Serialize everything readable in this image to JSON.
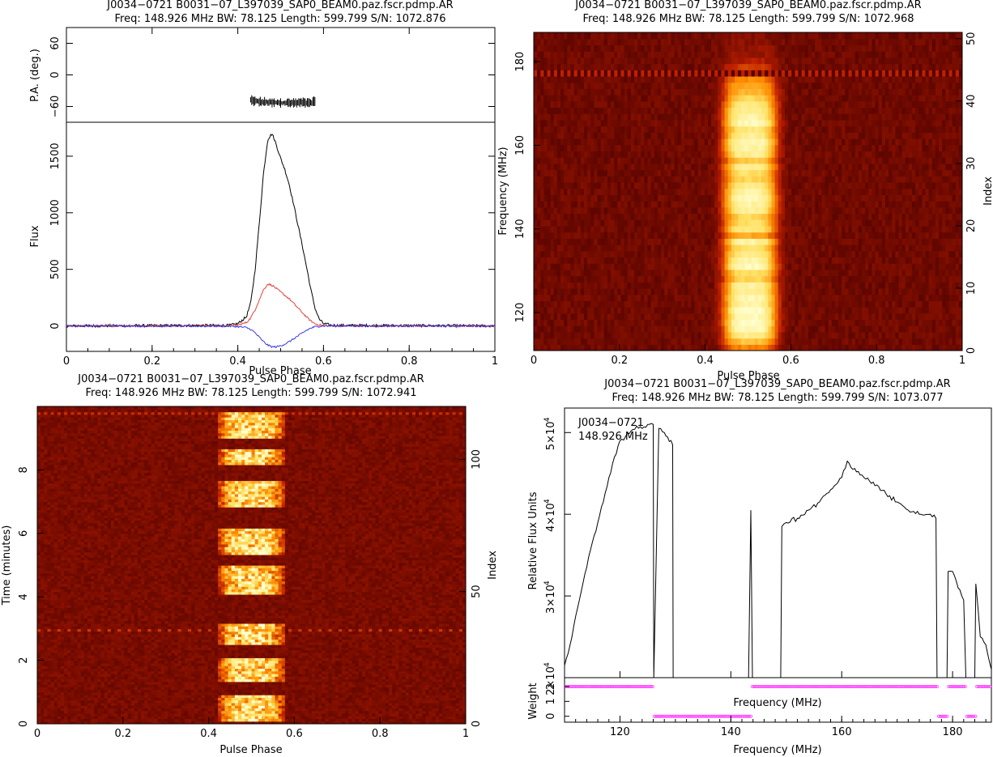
{
  "chart_data": [
    {
      "id": "profile",
      "type": "line",
      "title": "J0034−0721 B0031−07_L397039_SAP0_BEAM0.paz.fscr.pdmp.AR",
      "subtitle": "Freq: 148.926 MHz BW: 78.125 Length: 599.799 S/N: 1072.876",
      "xlabel": "Pulse Phase",
      "x_ticks": [
        "0",
        "0.2",
        "0.4",
        "0.6",
        "0.8",
        "1"
      ],
      "xlim": [
        0,
        1
      ],
      "pa_panel": {
        "ylabel": "P.A. (deg.)",
        "y_ticks": [
          "60",
          "0",
          "−60"
        ],
        "ylim": [
          -90,
          90
        ],
        "x": [
          0.43,
          0.44,
          0.45,
          0.46,
          0.47,
          0.48,
          0.49,
          0.5,
          0.51,
          0.52,
          0.53,
          0.54,
          0.55,
          0.56,
          0.57,
          0.58
        ],
        "values": [
          -48,
          -50,
          -51,
          -52,
          -52,
          -53,
          -53,
          -53,
          -53,
          -53,
          -53,
          -53,
          -52,
          -52,
          -52,
          -51
        ]
      },
      "flux_panel": {
        "ylabel": "Flux",
        "y_ticks": [
          "1500",
          "1000",
          "500",
          "0"
        ],
        "ylim": [
          -225,
          1800
        ],
        "x": [
          0,
          0.38,
          0.4,
          0.42,
          0.43,
          0.44,
          0.45,
          0.46,
          0.47,
          0.48,
          0.49,
          0.5,
          0.51,
          0.52,
          0.53,
          0.54,
          0.55,
          0.56,
          0.57,
          0.58,
          0.59,
          0.6,
          0.62,
          1.0
        ],
        "series": [
          {
            "color": "#000000",
            "values": [
              0,
              5,
              20,
              80,
              200,
              480,
              900,
              1350,
              1650,
              1700,
              1600,
              1480,
              1380,
              1250,
              1080,
              900,
              720,
              530,
              330,
              160,
              60,
              20,
              5,
              0
            ]
          },
          {
            "color": "#e8403a",
            "values": [
              0,
              2,
              8,
              30,
              70,
              140,
              230,
              320,
              370,
              360,
              330,
              300,
              270,
              240,
              200,
              160,
              120,
              80,
              45,
              20,
              8,
              3,
              0,
              0
            ]
          },
          {
            "color": "#3a3ae8",
            "values": [
              0,
              -2,
              -6,
              -15,
              -30,
              -60,
              -100,
              -140,
              -170,
              -185,
              -185,
              -175,
              -160,
              -140,
              -115,
              -90,
              -65,
              -40,
              -20,
              -8,
              -3,
              0,
              0,
              0
            ]
          }
        ]
      }
    },
    {
      "id": "freq-phase",
      "type": "heatmap",
      "title": "J0034−0721 B0031−07_L397039_SAP0_BEAM0.paz.fscr.pdmp.AR",
      "subtitle": "Freq: 148.926 MHz BW: 78.125 Length: 599.799 S/N: 1072.968",
      "xlabel": "Pulse Phase",
      "ylabel": "Frequency (MHz)",
      "right_label": "Index",
      "x_ticks": [
        "0",
        "0.2",
        "0.4",
        "0.6",
        "0.8",
        "1"
      ],
      "y_ticks": [
        "180",
        "160",
        "140",
        "120"
      ],
      "right_ticks": [
        "50",
        "40",
        "30",
        "20",
        "10",
        "0"
      ],
      "xlim": [
        0,
        1
      ],
      "ylim": [
        110.9,
        187.0
      ],
      "right_lim": [
        0,
        51
      ],
      "pulse_center": 0.505,
      "pulse_width": 0.13,
      "channel_weights": [
        0.45,
        0.65,
        0.85,
        0.95,
        1.0,
        0.95,
        0.98,
        0.9,
        0.92,
        0.85,
        0.88,
        0.7,
        0.75,
        0.95,
        0.9,
        0.82,
        0.75,
        0.9,
        0.55,
        0.8,
        0.75,
        0.7,
        0.85,
        0.9,
        0.95,
        0.9,
        0.82,
        0.7,
        0.75,
        0.85,
        0.65,
        0.85,
        0.9,
        0.95,
        0.85,
        0.8,
        0.95,
        0.9,
        0.85,
        0.8,
        0.7,
        0.6,
        0.55,
        0.45,
        0.35,
        0.25,
        0.15,
        0.1,
        0.08,
        0.06,
        0.05
      ],
      "colormap": [
        "#4a0000",
        "#c02000",
        "#ff8c00",
        "#ffe060",
        "#ffffd0"
      ]
    },
    {
      "id": "time-phase",
      "type": "heatmap",
      "title": "J0034−0721 B0031−07_L397039_SAP0_BEAM0.paz.fscr.pdmp.AR",
      "subtitle": "Freq: 148.926 MHz BW: 78.125 Length: 599.799 S/N: 1072.941",
      "xlabel": "Pulse Phase",
      "ylabel": "Time (minutes)",
      "right_label": "Index",
      "x_ticks": [
        "0",
        "0.2",
        "0.4",
        "0.6",
        "0.8",
        "1"
      ],
      "y_ticks": [
        "8",
        "6",
        "4",
        "2",
        "0"
      ],
      "right_ticks": [
        "100",
        "50",
        "0"
      ],
      "xlim": [
        0,
        1
      ],
      "ylim": [
        0,
        10
      ],
      "right_lim": [
        0,
        120
      ],
      "pulse_center": 0.5,
      "pulse_width": 0.16,
      "on_intervals_minutes": [
        [
          0.1,
          0.9
        ],
        [
          1.3,
          2.1
        ],
        [
          2.5,
          3.2
        ],
        [
          4.1,
          5.0
        ],
        [
          5.3,
          6.2
        ],
        [
          6.8,
          7.7
        ],
        [
          8.2,
          8.7
        ],
        [
          9.0,
          9.85
        ]
      ],
      "colormap": [
        "#4a0000",
        "#c02000",
        "#ff8c00",
        "#ffe060",
        "#ffffd0"
      ]
    },
    {
      "id": "bandpass",
      "type": "line",
      "title": "J0034−0721 B0031−07_L397039_SAP0_BEAM0.paz.fscr.pdmp.AR",
      "subtitle": "Freq: 148.926 MHz BW: 78.125 Length: 599.799 S/N: 1073.077",
      "annotation_lines": [
        "J0034−0721",
        "148.926 MHz"
      ],
      "xlabel": "Frequency (MHz)",
      "ylabel": "Relative Flux Units",
      "x_ticks": [
        "120",
        "140",
        "160",
        "180"
      ],
      "y_ticks": [
        {
          "label": "5×10",
          "exp": "4",
          "value": 50000
        },
        {
          "label": "4×10",
          "exp": "4",
          "value": 40000
        },
        {
          "label": "3×10",
          "exp": "4",
          "value": 30000
        },
        {
          "label": "2×10",
          "exp": "4",
          "value": 20000
        }
      ],
      "xlim": [
        110,
        187
      ],
      "ylim": [
        20000,
        53000
      ],
      "x": [
        110,
        111,
        112,
        113,
        114,
        115,
        116,
        117,
        118,
        119,
        120,
        121,
        122,
        123,
        124,
        125,
        126,
        126.1,
        127,
        128,
        129.5,
        129.6,
        143.2,
        143.6,
        143.9,
        149,
        149.2,
        150,
        152,
        154,
        156,
        158,
        160,
        161,
        162,
        164,
        166,
        168,
        170,
        172,
        174,
        176,
        177,
        177.2,
        179,
        179.2,
        180,
        181,
        182,
        182.4,
        184,
        184.2,
        185,
        186,
        187
      ],
      "values": [
        21500,
        24000,
        27500,
        30500,
        33500,
        36500,
        39000,
        41500,
        44500,
        47000,
        49000,
        49500,
        50200,
        50800,
        50500,
        51000,
        51000,
        20000,
        50500,
        50000,
        48500,
        20000,
        20000,
        40500,
        20000,
        20000,
        38500,
        39000,
        39500,
        40500,
        41500,
        43000,
        44500,
        46500,
        45500,
        44500,
        43500,
        42500,
        41500,
        40500,
        40000,
        40000,
        39500,
        20000,
        20000,
        33000,
        33000,
        31000,
        29500,
        20000,
        20000,
        31500,
        25000,
        24000,
        21000
      ],
      "weight_panel": {
        "ylabel": "Weight",
        "y_ticks": [
          "2",
          "1",
          "0"
        ],
        "ylim": [
          -0.4,
          2.6
        ],
        "x": [
          110,
          126,
          126.2,
          129.5,
          129.7,
          143.6,
          143.8,
          149,
          149.2,
          177.3,
          177.5,
          179.2,
          179.4,
          182.4,
          182.6,
          184.2,
          184.4,
          187
        ],
        "values": [
          2,
          2,
          0,
          0,
          0,
          0,
          2,
          2,
          2,
          2,
          0,
          0,
          2,
          2,
          0,
          0,
          2,
          2
        ],
        "color": "#ff40ff"
      },
      "inner_xlabel": "Frequency (MHz)"
    }
  ]
}
